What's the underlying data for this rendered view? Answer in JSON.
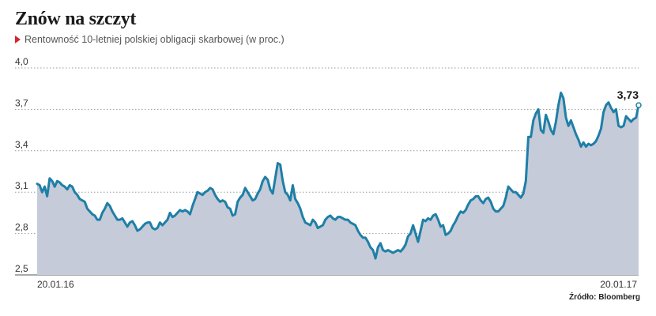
{
  "header": {
    "title": "Znów na szczyt",
    "subtitle": "Rentowność 10-letniej polskiej obligacji skarbowej (w proc.)",
    "source": "Źródło: Bloomberg"
  },
  "colors": {
    "line": "#1f7fa6",
    "area": "#c5cbd9",
    "grid": "#999999",
    "subtitle_marker": "#d7262b"
  },
  "chart_data": {
    "type": "area",
    "title": "Znów na szczyt",
    "subtitle": "Rentowność 10-letniej polskiej obligacji skarbowej (w proc.)",
    "ylim": [
      2.5,
      4.0
    ],
    "yticks": [
      2.5,
      2.8,
      3.1,
      3.4,
      3.7,
      4.0
    ],
    "ytick_labels": [
      "2,5",
      "2,8",
      "3,1",
      "3,4",
      "3,7",
      "4,0"
    ],
    "grid": "horizontal dotted",
    "x_start_label": "20.01.16",
    "x_end_label": "20.01.17",
    "end_value_label": "3,73",
    "y": [
      3.16,
      3.15,
      3.1,
      3.14,
      3.07,
      3.2,
      3.18,
      3.14,
      3.18,
      3.17,
      3.15,
      3.14,
      3.12,
      3.15,
      3.14,
      3.1,
      3.08,
      3.05,
      3.04,
      3.03,
      2.98,
      2.96,
      2.94,
      2.93,
      2.9,
      2.9,
      2.95,
      2.98,
      3.02,
      3.0,
      2.96,
      2.93,
      2.9,
      2.9,
      2.91,
      2.88,
      2.85,
      2.88,
      2.89,
      2.86,
      2.82,
      2.83,
      2.85,
      2.87,
      2.88,
      2.88,
      2.84,
      2.83,
      2.84,
      2.88,
      2.86,
      2.88,
      2.9,
      2.95,
      2.92,
      2.93,
      2.95,
      2.97,
      2.96,
      2.97,
      2.96,
      2.94,
      3.0,
      3.05,
      3.1,
      3.09,
      3.08,
      3.1,
      3.11,
      3.13,
      3.12,
      3.08,
      3.05,
      3.03,
      3.04,
      3.03,
      2.99,
      2.98,
      2.93,
      2.94,
      3.03,
      3.06,
      3.08,
      3.13,
      3.1,
      3.07,
      3.04,
      3.05,
      3.09,
      3.12,
      3.18,
      3.21,
      3.19,
      3.12,
      3.09,
      3.2,
      3.31,
      3.3,
      3.18,
      3.1,
      3.08,
      3.04,
      3.15,
      3.05,
      3.02,
      2.98,
      2.92,
      2.88,
      2.87,
      2.86,
      2.9,
      2.88,
      2.84,
      2.85,
      2.86,
      2.9,
      2.92,
      2.93,
      2.91,
      2.9,
      2.92,
      2.92,
      2.91,
      2.9,
      2.9,
      2.88,
      2.87,
      2.86,
      2.82,
      2.79,
      2.77,
      2.77,
      2.74,
      2.7,
      2.68,
      2.62,
      2.7,
      2.73,
      2.68,
      2.67,
      2.68,
      2.67,
      2.66,
      2.67,
      2.68,
      2.67,
      2.69,
      2.72,
      2.78,
      2.8,
      2.86,
      2.8,
      2.74,
      2.82,
      2.9,
      2.89,
      2.91,
      2.9,
      2.93,
      2.94,
      2.9,
      2.85,
      2.86,
      2.79,
      2.8,
      2.82,
      2.86,
      2.89,
      2.93,
      2.96,
      2.95,
      2.97,
      3.01,
      3.04,
      3.05,
      3.07,
      3.07,
      3.04,
      3.02,
      3.05,
      3.06,
      3.03,
      2.98,
      2.96,
      2.96,
      2.98,
      3.0,
      3.06,
      3.14,
      3.12,
      3.1,
      3.1,
      3.08,
      3.06,
      3.09,
      3.18,
      3.5,
      3.5,
      3.62,
      3.67,
      3.7,
      3.55,
      3.53,
      3.66,
      3.61,
      3.55,
      3.52,
      3.61,
      3.73,
      3.82,
      3.78,
      3.64,
      3.58,
      3.62,
      3.57,
      3.52,
      3.48,
      3.43,
      3.46,
      3.43,
      3.45,
      3.44,
      3.45,
      3.47,
      3.51,
      3.56,
      3.68,
      3.73,
      3.75,
      3.71,
      3.68,
      3.7,
      3.58,
      3.57,
      3.58,
      3.65,
      3.63,
      3.61,
      3.63,
      3.64,
      3.73
    ]
  }
}
